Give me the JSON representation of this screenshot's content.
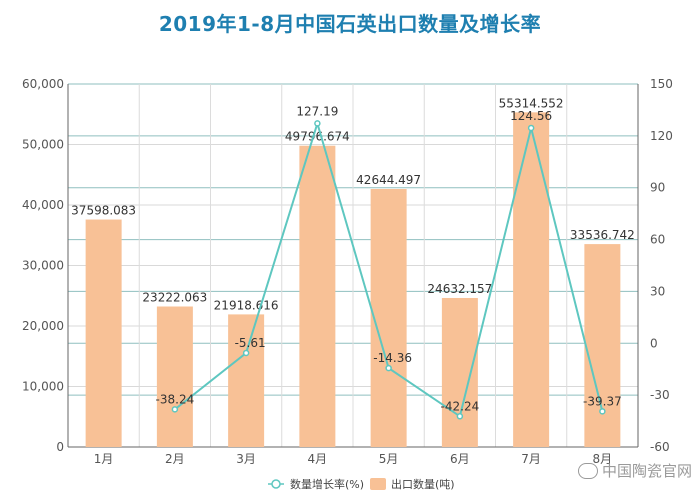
{
  "title": "2019年1-8月中国石英出口数量及增长率",
  "watermark": "中国陶瓷官网",
  "chart_data": {
    "type": "bar",
    "title": "2019年1-8月中国石英出口数量及增长率",
    "categories": [
      "1月",
      "2月",
      "3月",
      "4月",
      "5月",
      "6月",
      "7月",
      "8月"
    ],
    "series": [
      {
        "name": "出口数量(吨)",
        "type": "bar",
        "axis": "left",
        "color": "#f8c196",
        "values": [
          37598.083,
          23222.063,
          21918.616,
          49796.674,
          42644.497,
          24632.157,
          55314.552,
          33536.742
        ],
        "labels": [
          "37598.083",
          "23222.063",
          "21918.616",
          "49796.674",
          "42644.497",
          "24632.157",
          "55314.552",
          "33536.742"
        ]
      },
      {
        "name": "数量增长率(%)",
        "type": "line",
        "axis": "right",
        "color": "#5ec7c0",
        "values": [
          null,
          -38.24,
          -5.61,
          127.19,
          -14.36,
          -42.24,
          124.56,
          -39.37
        ],
        "labels": [
          "",
          "-38.24",
          "-5.61",
          "127.19",
          "-14.36",
          "-42.24",
          "124.56",
          "-39.37"
        ]
      }
    ],
    "left_axis": {
      "ylim": [
        0,
        60000
      ],
      "ticks": [
        "0",
        "10,000",
        "20,000",
        "30,000",
        "40,000",
        "50,000",
        "60,000"
      ]
    },
    "right_axis": {
      "ylim": [
        -60,
        150
      ],
      "ticks": [
        "-60",
        "-30",
        "0",
        "30",
        "60",
        "90",
        "120",
        "150"
      ]
    },
    "grid": true,
    "legend_position": "bottom"
  }
}
